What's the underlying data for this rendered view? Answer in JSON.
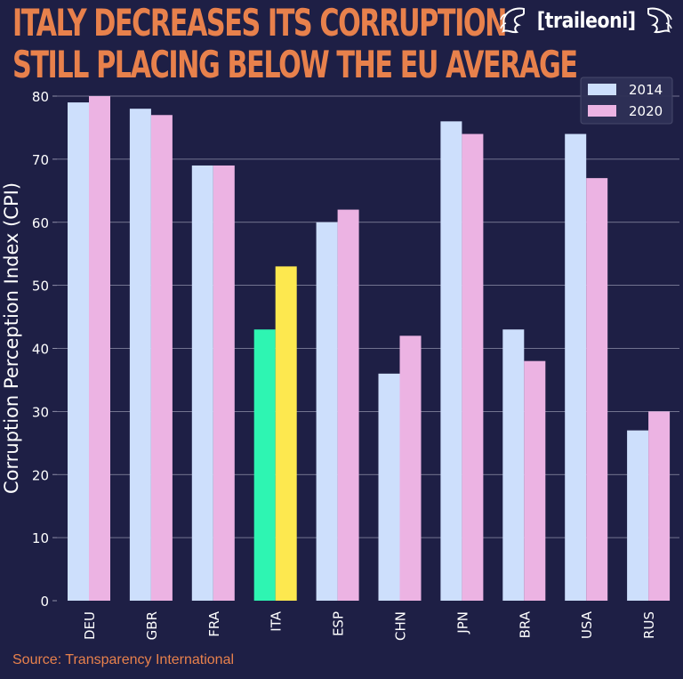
{
  "title_lines": [
    "Italy decreases its corruption",
    "still placing below the EU average"
  ],
  "brand": {
    "name": "[traileoni]"
  },
  "source": "Source: Transparency International",
  "colors": {
    "background": "#1e1f45",
    "accent": "#e8814c",
    "series_2014": "#cddffc",
    "series_2020": "#ecb3e3",
    "highlight_2014": "#2ef5b2",
    "highlight_2020": "#fde84f",
    "grid": "#8e8fa8",
    "text": "#ffffff"
  },
  "chart_data": {
    "type": "bar",
    "categories": [
      "DEU",
      "GBR",
      "FRA",
      "ITA",
      "ESP",
      "CHN",
      "JPN",
      "BRA",
      "USA",
      "RUS"
    ],
    "series": [
      {
        "name": "2014",
        "values": [
          79,
          78,
          69,
          43,
          60,
          36,
          76,
          43,
          74,
          27
        ]
      },
      {
        "name": "2020",
        "values": [
          80,
          77,
          69,
          53,
          62,
          42,
          74,
          38,
          67,
          30
        ]
      }
    ],
    "highlight_category": "ITA",
    "ylabel": "Corruption Perception Index (CPI)",
    "xlabel": "",
    "ylim": [
      0,
      80
    ],
    "yticks": [
      0,
      10,
      20,
      30,
      40,
      50,
      60,
      70,
      80
    ],
    "grid": "horizontal",
    "legend": "top-right"
  }
}
